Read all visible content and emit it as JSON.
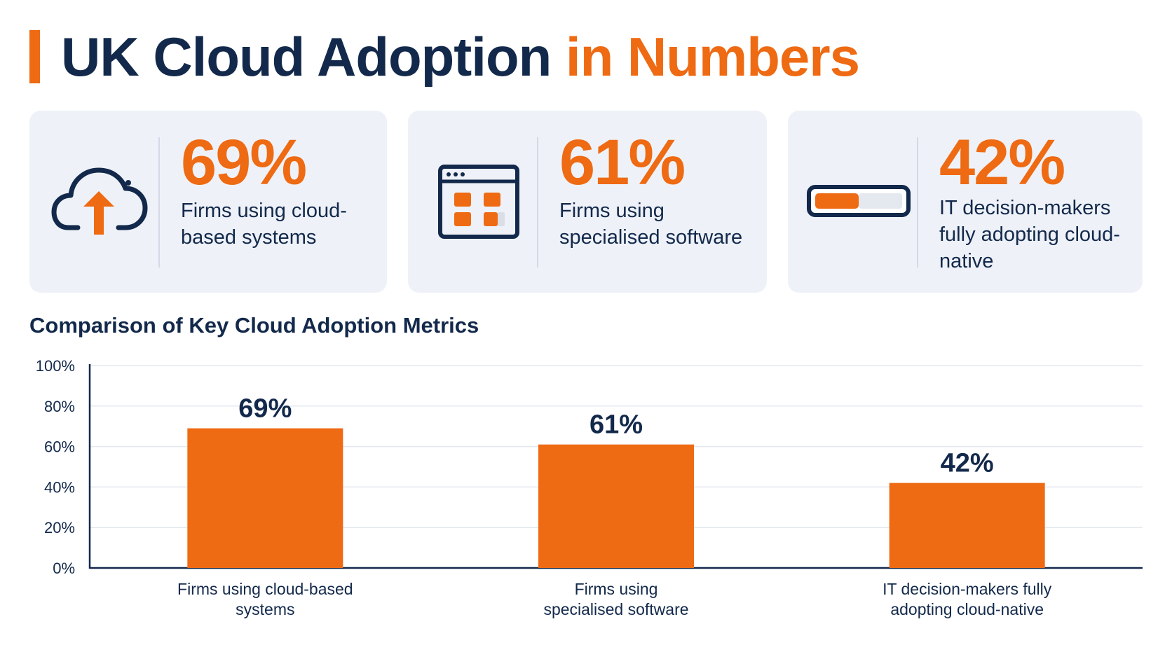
{
  "header": {
    "title_main": "UK Cloud Adoption",
    "title_accent": "in Numbers"
  },
  "colors": {
    "accent": "#ee6a13",
    "navy": "#13294b",
    "card_bg": "#eef2f8",
    "grid": "#e3e8ef"
  },
  "cards": [
    {
      "icon": "cloud-upload-icon",
      "stat": "69%",
      "description": "Firms using cloud-based systems"
    },
    {
      "icon": "software-window-icon",
      "stat": "61%",
      "description": "Firms using specialised software"
    },
    {
      "icon": "progress-bar-icon",
      "stat": "42%",
      "description": "IT decision-makers fully adopting cloud-native"
    }
  ],
  "chart_data": {
    "type": "bar",
    "title": "Comparison of Key Cloud Adoption Metrics",
    "categories": [
      "Firms using cloud-based systems",
      "Firms using specialised software",
      "IT decision-makers fully adopting cloud-native"
    ],
    "category_lines": [
      [
        "Firms using cloud-based",
        "systems"
      ],
      [
        "Firms using",
        "specialised software"
      ],
      [
        "IT decision-makers fully",
        "adopting cloud-native"
      ]
    ],
    "values": [
      69,
      61,
      42
    ],
    "value_labels": [
      "69%",
      "61%",
      "42%"
    ],
    "ylim": [
      0,
      100
    ],
    "yticks": [
      0,
      20,
      40,
      60,
      80,
      100
    ],
    "ytick_labels": [
      "0%",
      "20%",
      "40%",
      "60%",
      "80%",
      "100%"
    ],
    "xlabel": "",
    "ylabel": "",
    "grid": true,
    "legend": "none"
  }
}
